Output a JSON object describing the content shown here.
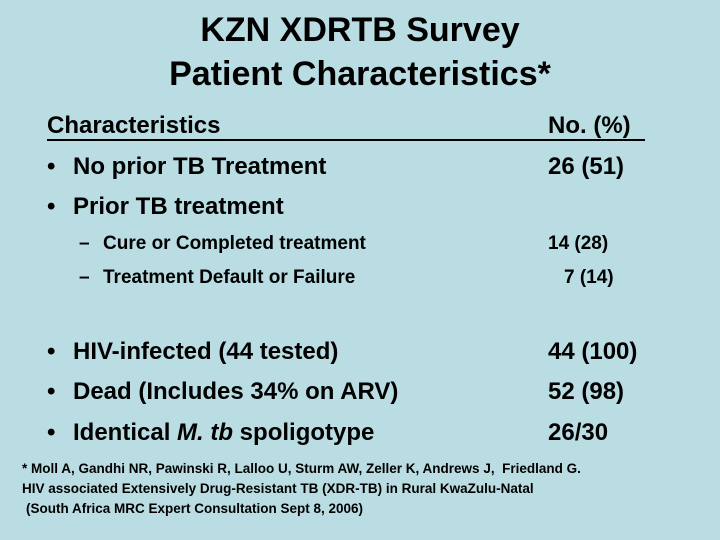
{
  "title": {
    "line1": "KZN XDRTB Survey",
    "line2": "Patient Characteristics*"
  },
  "table": {
    "col_characteristics": "Characteristics",
    "col_value": "No. (%)",
    "rows": [
      {
        "label": "No prior TB Treatment",
        "value": "26 (51)"
      },
      {
        "label": "Prior TB treatment",
        "value": ""
      },
      {
        "label": "Cure or Completed treatment",
        "value": "14 (28)"
      },
      {
        "label": "Treatment Default or Failure",
        "value": "7 (14)"
      },
      {
        "label": "HIV-infected (44 tested)",
        "value": "44 (100)"
      },
      {
        "label": "Dead (Includes 34% on ARV)",
        "value": "52 (98)"
      },
      {
        "label_prefix": "Identical ",
        "label_italic": "M. tb",
        "label_suffix": " spoligotype",
        "value": "26/30"
      }
    ]
  },
  "footnote": {
    "line1": "* Moll A, Gandhi NR, Pawinski R, Lalloo U, Sturm AW, Zeller K, Andrews J,  Friedland G.",
    "line2": "HIV associated Extensively Drug-Resistant TB (XDR-TB) in Rural KwaZulu-Natal",
    "line3": "(South Africa MRC Expert Consultation Sept 8, 2006)"
  },
  "colors": {
    "background": "#b9dde2",
    "text": "#000000"
  }
}
